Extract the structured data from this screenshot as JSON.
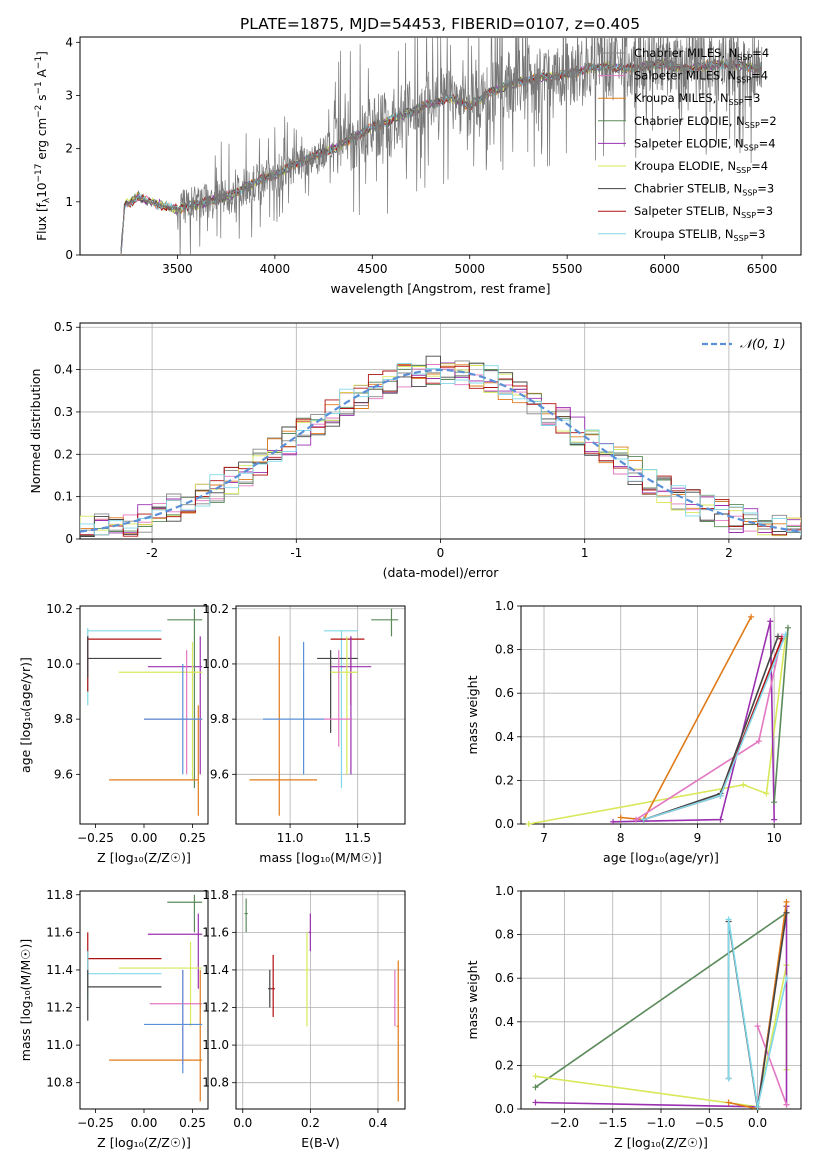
{
  "figure": {
    "title": "PLATE=1875, MJD=54453, FIBERID=0107, z=0.405"
  },
  "colors": {
    "chabrier_miles": "#888888",
    "salpeter_miles": "#e377c2",
    "kroupa_miles": "#ff7f0e",
    "chabrier_elodie": "#2ca02c",
    "salpeter_elodie": "#9467bd",
    "kroupa_elodie": "#dbdb3d",
    "chabrier_stelib": "#555555",
    "salpeter_stelib": "#d62728",
    "kroupa_stelib": "#17becf"
  },
  "chart_data": [
    {
      "id": "spectrum",
      "type": "line",
      "xlabel": "wavelength [Angstrom, rest frame]",
      "ylabel": "Flux [f",
      "ylabel_sub": "λ",
      "ylabel_mid": "10",
      "ylabel_sup1": "−17",
      "ylabel_tail1": " erg cm",
      "ylabel_sup2": "−2",
      "ylabel_tail2": " s",
      "ylabel_sup3": "−1",
      "ylabel_tail3": " A",
      "ylabel_sup4": "−1",
      "ylabel_end": "]",
      "xlim": [
        3000,
        6700
      ],
      "ylim": [
        0,
        4.1
      ],
      "xticks": [
        3500,
        4000,
        4500,
        5000,
        5500,
        6000,
        6500
      ],
      "yticks": [
        0,
        1,
        2,
        3,
        4
      ],
      "legend_position": "top-right",
      "legend": [
        {
          "pre": "Chabrier MILES, N",
          "sub": "SSP",
          "post": "=4",
          "color": "#888888"
        },
        {
          "pre": "Salpeter MILES, N",
          "sub": "SSP",
          "post": "=4",
          "color": "#e377c2"
        },
        {
          "pre": "Kroupa MILES, N",
          "sub": "SSP",
          "post": "=3",
          "color": "#e07b1a"
        },
        {
          "pre": "Chabrier ELODIE, N",
          "sub": "SSP",
          "post": "=2",
          "color": "#5b8a5b"
        },
        {
          "pre": "Salpeter ELODIE, N",
          "sub": "SSP",
          "post": "=4",
          "color": "#9b30b0"
        },
        {
          "pre": "Kroupa ELODIE, N",
          "sub": "SSP",
          "post": "=4",
          "color": "#d8e85a"
        },
        {
          "pre": "Chabrier STELIB, N",
          "sub": "SSP",
          "post": "=3",
          "color": "#444444"
        },
        {
          "pre": "Salpeter STELIB, N",
          "sub": "SSP",
          "post": "=3",
          "color": "#b01010"
        },
        {
          "pre": "Kroupa STELIB, N",
          "sub": "SSP",
          "post": "=3",
          "color": "#80d8e8"
        }
      ],
      "data_curve": {
        "x": [
          3210,
          3230,
          3260,
          3300,
          3350,
          3400,
          3450,
          3500,
          3550,
          3600,
          3650,
          3700,
          3750,
          3800,
          3850,
          3900,
          3950,
          4000,
          4100,
          4200,
          4300,
          4400,
          4500,
          4600,
          4700,
          4800,
          4900,
          5000,
          5100,
          5200,
          5300,
          5400,
          5500,
          5600,
          5700,
          5800,
          5900,
          6000,
          6100,
          6200,
          6300,
          6400,
          6500
        ],
        "y": [
          0,
          0.95,
          1.0,
          1.1,
          1.0,
          0.95,
          0.9,
          0.85,
          0.92,
          0.95,
          1.0,
          1.05,
          1.1,
          1.15,
          1.3,
          1.35,
          1.45,
          1.5,
          1.7,
          1.85,
          2.0,
          2.2,
          2.4,
          2.55,
          2.7,
          2.85,
          2.95,
          2.8,
          3.05,
          3.2,
          3.3,
          3.35,
          3.4,
          3.5,
          3.55,
          3.5,
          3.55,
          3.6,
          3.5,
          3.55,
          3.6,
          3.55,
          3.5
        ]
      }
    },
    {
      "id": "residuals",
      "type": "bar",
      "xlabel": "(data-model)/error",
      "ylabel": "Normed distribution",
      "xlim": [
        -2.5,
        2.5
      ],
      "ylim": [
        0,
        0.51
      ],
      "xticks": [
        -2,
        -1,
        0,
        1,
        2
      ],
      "yticks": [
        0.0,
        0.1,
        0.2,
        0.3,
        0.4,
        0.5
      ],
      "legend_position": "top-right",
      "legend": [
        {
          "label": "𝒩(0, 1)",
          "color": "#5b8fd6"
        }
      ],
      "grid": true
    },
    {
      "id": "age_vs_Z",
      "type": "scatter",
      "xlabel": "Z [log₁₀(Z/Z☉)]",
      "ylabel": "age  [log₁₀(age/yr)]",
      "xlim": [
        -0.33,
        0.33
      ],
      "ylim": [
        9.42,
        10.21
      ],
      "xticks": [
        -0.25,
        0.0,
        0.25
      ],
      "xtick_labels": [
        "−0.25",
        "0.00",
        "0.25"
      ],
      "yticks": [
        9.6,
        9.8,
        10.0,
        10.2
      ],
      "ytick_labels": [
        "9.6",
        "9.8",
        "10.0",
        "10.2"
      ]
    },
    {
      "id": "age_vs_mass",
      "type": "scatter",
      "xlabel": "mass [log₁₀(M/M☉)]",
      "xlim": [
        10.6,
        11.85
      ],
      "ylim": [
        9.42,
        10.21
      ],
      "xticks": [
        11.0,
        11.5
      ],
      "xtick_labels": [
        "11.0",
        "11.5"
      ],
      "yticks": [
        9.6,
        9.8,
        10.0,
        10.2
      ],
      "ytick_labels": [
        "9.6",
        "9.8",
        "10.0",
        "10.2"
      ],
      "grid": true
    },
    {
      "id": "weight_vs_age",
      "type": "line",
      "xlabel": "age  [log₁₀(age/yr)]",
      "ylabel": "mass weight",
      "xlim": [
        6.7,
        10.35
      ],
      "ylim": [
        0,
        1.0
      ],
      "xticks": [
        7,
        8,
        9,
        10
      ],
      "yticks": [
        0.0,
        0.2,
        0.4,
        0.6,
        0.8,
        1.0
      ],
      "ytick_labels": [
        "0.0",
        "0.2",
        "0.4",
        "0.6",
        "0.8",
        "1.0"
      ],
      "grid": true
    },
    {
      "id": "mass_vs_Z",
      "type": "scatter",
      "xlabel": "Z [log₁₀(Z/Z☉)]",
      "ylabel": "mass [log₁₀(M/M☉)]",
      "xlim": [
        -0.33,
        0.33
      ],
      "ylim": [
        10.66,
        11.82
      ],
      "xticks": [
        -0.25,
        0.0,
        0.25
      ],
      "xtick_labels": [
        "−0.25",
        "0.00",
        "0.25"
      ],
      "yticks": [
        10.8,
        11.0,
        11.2,
        11.4,
        11.6,
        11.8
      ],
      "ytick_labels": [
        "10.8",
        "11.0",
        "11.2",
        "11.4",
        "11.6",
        "11.8"
      ]
    },
    {
      "id": "mass_vs_ebv",
      "type": "scatter",
      "xlabel": "E(B-V)",
      "xlim": [
        -0.02,
        0.48
      ],
      "ylim": [
        10.66,
        11.82
      ],
      "xticks": [
        0.0,
        0.2,
        0.4
      ],
      "xtick_labels": [
        "0.0",
        "0.2",
        "0.4"
      ],
      "yticks": [
        10.8,
        11.0,
        11.2,
        11.4,
        11.6,
        11.8
      ],
      "ytick_labels": [
        "10.8",
        "11.0",
        "11.2",
        "11.4",
        "11.6",
        "11.8"
      ],
      "grid": true
    },
    {
      "id": "weight_vs_Z",
      "type": "line",
      "xlabel": "Z [log₁₀(Z/Z☉)]",
      "ylabel": "mass weight",
      "xlim": [
        -2.45,
        0.45
      ],
      "ylim": [
        0,
        1.0
      ],
      "xticks": [
        -2.0,
        -1.5,
        -1.0,
        -0.5,
        0.0
      ],
      "xtick_labels": [
        "−2.0",
        "−1.5",
        "−1.0",
        "−0.5",
        "0.0"
      ],
      "yticks": [
        0.0,
        0.2,
        0.4,
        0.6,
        0.8,
        1.0
      ],
      "ytick_labels": [
        "0.0",
        "0.2",
        "0.4",
        "0.6",
        "0.8",
        "1.0"
      ],
      "grid": true
    }
  ]
}
